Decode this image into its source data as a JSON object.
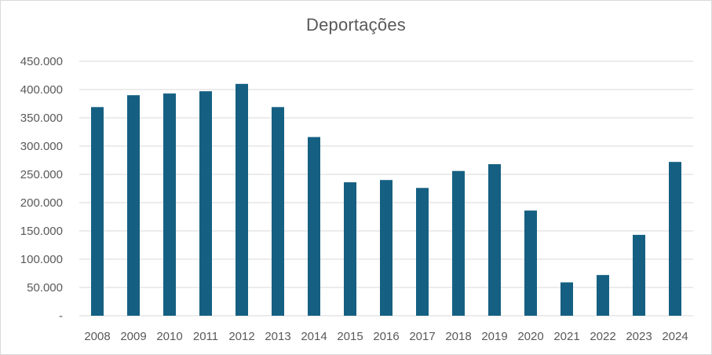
{
  "chart_data": {
    "type": "bar",
    "title": "Deportações",
    "xlabel": "",
    "ylabel": "",
    "ylim": [
      0,
      450000
    ],
    "y_ticks": [
      {
        "value": 0,
        "label": "-"
      },
      {
        "value": 50000,
        "label": "50.000"
      },
      {
        "value": 100000,
        "label": "100.000"
      },
      {
        "value": 150000,
        "label": "150.000"
      },
      {
        "value": 200000,
        "label": "200.000"
      },
      {
        "value": 250000,
        "label": "250.000"
      },
      {
        "value": 300000,
        "label": "300.000"
      },
      {
        "value": 350000,
        "label": "350.000"
      },
      {
        "value": 400000,
        "label": "400.000"
      },
      {
        "value": 450000,
        "label": "450.000"
      }
    ],
    "categories": [
      "2008",
      "2009",
      "2010",
      "2011",
      "2012",
      "2013",
      "2014",
      "2015",
      "2016",
      "2017",
      "2018",
      "2019",
      "2020",
      "2021",
      "2022",
      "2023",
      "2024"
    ],
    "values": [
      369000,
      390000,
      393000,
      397000,
      410000,
      369000,
      316000,
      236000,
      240000,
      226000,
      256000,
      268000,
      186000,
      59000,
      72000,
      143000,
      272000
    ],
    "bar_color": "#156082",
    "grid": true,
    "legend": "none"
  }
}
